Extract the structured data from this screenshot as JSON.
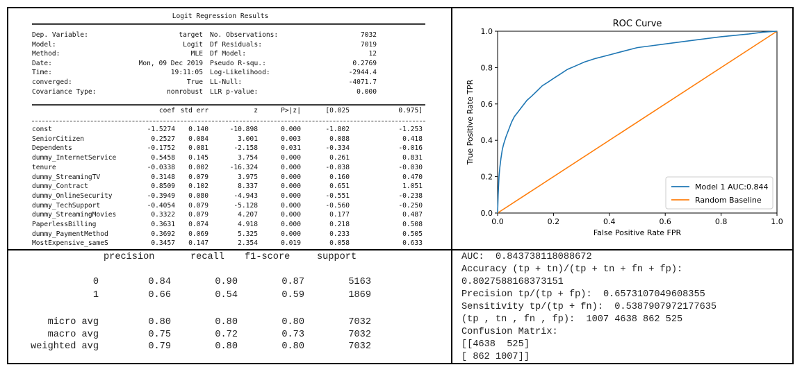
{
  "logit": {
    "title": "Logit Regression Results",
    "summary_rows": [
      {
        "k1": "Dep. Variable:",
        "v1": "target",
        "k2": "No. Observations:",
        "v2": "7032"
      },
      {
        "k1": "Model:",
        "v1": "Logit",
        "k2": "Df Residuals:",
        "v2": "7019"
      },
      {
        "k1": "Method:",
        "v1": "MLE",
        "k2": "Df Model:",
        "v2": "12"
      },
      {
        "k1": "Date:",
        "v1": "Mon, 09 Dec 2019",
        "k2": "Pseudo R-squ.:",
        "v2": "0.2769"
      },
      {
        "k1": "Time:",
        "v1": "19:11:05",
        "k2": "Log-Likelihood:",
        "v2": "-2944.4"
      },
      {
        "k1": "converged:",
        "v1": "True",
        "k2": "LL-Null:",
        "v2": "-4071.7"
      },
      {
        "k1": "Covariance Type:",
        "v1": "nonrobust",
        "k2": "LLR p-value:",
        "v2": "0.000"
      }
    ],
    "coef_headers": [
      "coef",
      "std err",
      "z",
      "P>|z|",
      "[0.025",
      "0.975]"
    ],
    "coef_rows": [
      {
        "name": "const",
        "vals": [
          "-1.5274",
          "0.140",
          "-10.898",
          "0.000",
          "-1.802",
          "-1.253"
        ]
      },
      {
        "name": "SeniorCitizen",
        "vals": [
          "0.2527",
          "0.084",
          "3.001",
          "0.003",
          "0.088",
          "0.418"
        ]
      },
      {
        "name": "Dependents",
        "vals": [
          "-0.1752",
          "0.081",
          "-2.158",
          "0.031",
          "-0.334",
          "-0.016"
        ]
      },
      {
        "name": "dummy_InternetService",
        "vals": [
          "0.5458",
          "0.145",
          "3.754",
          "0.000",
          "0.261",
          "0.831"
        ]
      },
      {
        "name": "tenure",
        "vals": [
          "-0.0338",
          "0.002",
          "-16.324",
          "0.000",
          "-0.038",
          "-0.030"
        ]
      },
      {
        "name": "dummy_StreamingTV",
        "vals": [
          "0.3148",
          "0.079",
          "3.975",
          "0.000",
          "0.160",
          "0.470"
        ]
      },
      {
        "name": "dummy_Contract",
        "vals": [
          "0.8509",
          "0.102",
          "8.337",
          "0.000",
          "0.651",
          "1.051"
        ]
      },
      {
        "name": "dummy_OnlineSecurity",
        "vals": [
          "-0.3949",
          "0.080",
          "-4.943",
          "0.000",
          "-0.551",
          "-0.238"
        ]
      },
      {
        "name": "dummy_TechSupport",
        "vals": [
          "-0.4054",
          "0.079",
          "-5.128",
          "0.000",
          "-0.560",
          "-0.250"
        ]
      },
      {
        "name": "dummy_StreamingMovies",
        "vals": [
          "0.3322",
          "0.079",
          "4.207",
          "0.000",
          "0.177",
          "0.487"
        ]
      },
      {
        "name": "PaperlessBilling",
        "vals": [
          "0.3631",
          "0.074",
          "4.918",
          "0.000",
          "0.218",
          "0.508"
        ]
      },
      {
        "name": "dummy_PaymentMethod",
        "vals": [
          "0.3692",
          "0.069",
          "5.325",
          "0.000",
          "0.233",
          "0.505"
        ]
      },
      {
        "name": "MostExpensive_sameS",
        "vals": [
          "0.3457",
          "0.147",
          "2.354",
          "0.019",
          "0.058",
          "0.633"
        ]
      }
    ]
  },
  "report": {
    "headers": [
      "precision",
      "recall",
      "f1-score",
      "support"
    ],
    "rows": [
      {
        "label": "0",
        "vals": [
          "0.84",
          "0.90",
          "0.87",
          "5163"
        ]
      },
      {
        "label": "1",
        "vals": [
          "0.66",
          "0.54",
          "0.59",
          "1869"
        ]
      },
      {
        "label": "micro avg",
        "vals": [
          "0.80",
          "0.80",
          "0.80",
          "7032"
        ]
      },
      {
        "label": "macro avg",
        "vals": [
          "0.75",
          "0.72",
          "0.73",
          "7032"
        ]
      },
      {
        "label": "weighted avg",
        "vals": [
          "0.79",
          "0.80",
          "0.80",
          "7032"
        ]
      }
    ]
  },
  "metrics": {
    "lines": [
      "AUC:  0.843738118088672",
      "Accuracy (tp + tn)/(tp + tn + fn + fp):",
      "0.8027588168373151",
      "Precision tp/(tp + fp):  0.6573107049608355",
      "Sensitivity tp/(tp + fn):  0.5387907972177635",
      "(tp , tn , fn , fp):  1007 4638 862 525",
      "Confusion Matrix:",
      "[[4638  525]",
      "[ 862 1007]]"
    ]
  },
  "chart_data": {
    "type": "line",
    "title": "ROC Curve",
    "xlabel": "False Positive Rate FPR",
    "ylabel": "True Positive Rate TPR",
    "xlim": [
      0.0,
      1.0
    ],
    "ylim": [
      0.0,
      1.0
    ],
    "xticks": [
      "0.0",
      "0.2",
      "0.4",
      "0.6",
      "0.8",
      "1.0"
    ],
    "yticks": [
      "0.0",
      "0.2",
      "0.4",
      "0.6",
      "0.8",
      "1.0"
    ],
    "grid": false,
    "legend_position": "lower-right",
    "series": [
      {
        "name": "Model 1 AUC:0.844",
        "color": "#1f77b4",
        "x": [
          0.0,
          0.002,
          0.005,
          0.008,
          0.012,
          0.017,
          0.022,
          0.03,
          0.04,
          0.05,
          0.06,
          0.075,
          0.09,
          0.105,
          0.12,
          0.14,
          0.16,
          0.18,
          0.2,
          0.22,
          0.25,
          0.28,
          0.31,
          0.35,
          0.4,
          0.45,
          0.5,
          0.55,
          0.6,
          0.7,
          0.8,
          0.9,
          0.95,
          1.0
        ],
        "y": [
          0.0,
          0.1,
          0.2,
          0.25,
          0.3,
          0.35,
          0.38,
          0.42,
          0.46,
          0.5,
          0.53,
          0.56,
          0.59,
          0.62,
          0.64,
          0.67,
          0.7,
          0.72,
          0.74,
          0.76,
          0.79,
          0.81,
          0.83,
          0.85,
          0.87,
          0.89,
          0.91,
          0.92,
          0.93,
          0.95,
          0.97,
          0.985,
          0.995,
          1.0
        ]
      },
      {
        "name": "Random Baseline",
        "color": "#ff7f0e",
        "x": [
          0.0,
          1.0
        ],
        "y": [
          0.0,
          1.0
        ]
      }
    ]
  }
}
